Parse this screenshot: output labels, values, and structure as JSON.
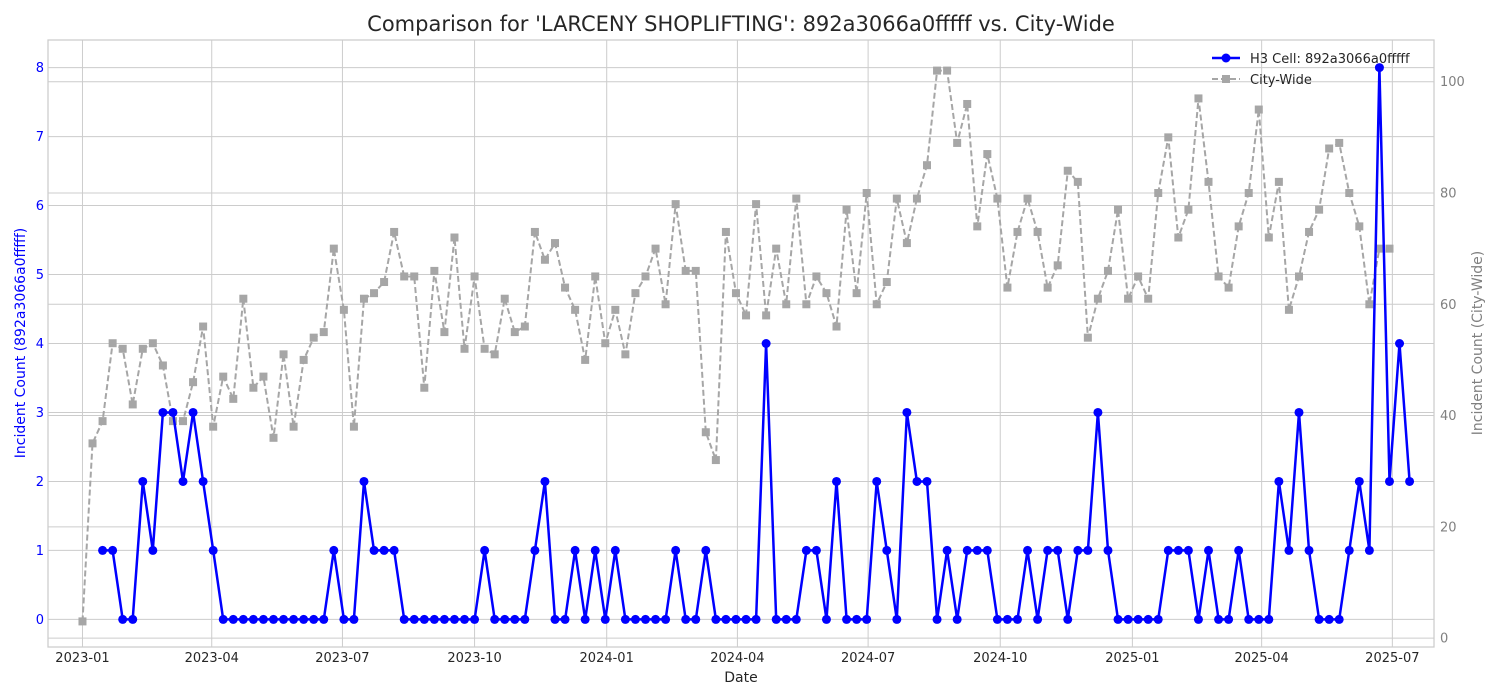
{
  "chart_data": {
    "type": "line",
    "title": "Comparison for 'LARCENY SHOPLIFTING': 892a3066a0fffff vs. City-Wide",
    "xlabel": "Date",
    "ylabel_left": "Incident Count (892a3066a0fffff)",
    "ylabel_right": "Incident Count (City-Wide)",
    "x_start": "2023-01-01",
    "x_step_days": 7,
    "x_ticks": [
      "2023-01",
      "2023-04",
      "2023-07",
      "2023-10",
      "2024-01",
      "2024-04",
      "2024-07",
      "2024-10",
      "2025-01",
      "2025-04",
      "2025-07"
    ],
    "x_range": [
      "2022-12-08",
      "2025-07-30"
    ],
    "y_left_ticks": [
      0,
      1,
      2,
      3,
      4,
      5,
      6,
      7,
      8
    ],
    "y_left_range": [
      -0.4,
      8.4
    ],
    "y_right_ticks": [
      0,
      20,
      40,
      60,
      80,
      100
    ],
    "y_right_range": [
      -1.6,
      107.5
    ],
    "grid": true,
    "legend_position": "upper right",
    "colors": {
      "cell": "#0000ff",
      "city": "#a6a6a6",
      "left_axis": "#0000ff",
      "right_axis": "#808080"
    },
    "series": [
      {
        "name": "H3 Cell: 892a3066a0fffff",
        "axis": "left",
        "marker": "circle",
        "start_index": 2,
        "values": [
          1,
          1,
          0,
          0,
          2,
          1,
          3,
          3,
          2,
          3,
          2,
          1,
          0,
          0,
          0,
          0,
          0,
          0,
          0,
          0,
          0,
          0,
          0,
          1,
          0,
          0,
          2,
          1,
          1,
          1,
          0,
          0,
          0,
          0,
          0,
          0,
          0,
          0,
          1,
          0,
          0,
          0,
          0,
          1,
          2,
          0,
          0,
          1,
          0,
          1,
          0,
          1,
          0,
          0,
          0,
          0,
          0,
          1,
          0,
          0,
          1,
          0,
          0,
          0,
          0,
          0,
          4,
          0,
          0,
          0,
          1,
          1,
          0,
          2,
          0,
          0,
          0,
          2,
          1,
          0,
          3,
          2,
          2,
          0,
          1,
          0,
          1,
          1,
          1,
          0,
          0,
          0,
          1,
          0,
          1,
          1,
          0,
          1,
          1,
          3,
          1,
          0,
          0,
          0,
          0,
          0,
          1,
          1,
          1,
          0,
          1,
          0,
          0,
          1,
          0,
          0,
          0,
          2,
          1,
          3,
          1,
          0,
          0,
          0,
          1,
          2,
          1,
          8,
          2,
          4,
          2
        ]
      },
      {
        "name": "City-Wide",
        "axis": "right",
        "marker": "square",
        "start_index": 0,
        "values": [
          3,
          35,
          39,
          53,
          52,
          42,
          52,
          53,
          49,
          39,
          39,
          46,
          56,
          38,
          47,
          43,
          61,
          45,
          47,
          36,
          51,
          38,
          50,
          54,
          55,
          70,
          59,
          38,
          61,
          62,
          64,
          73,
          65,
          65,
          45,
          66,
          55,
          72,
          52,
          65,
          52,
          51,
          61,
          55,
          56,
          73,
          68,
          71,
          63,
          59,
          50,
          65,
          53,
          59,
          51,
          62,
          65,
          70,
          60,
          78,
          66,
          66,
          37,
          32,
          73,
          62,
          58,
          78,
          58,
          70,
          60,
          79,
          60,
          65,
          62,
          56,
          77,
          62,
          80,
          60,
          64,
          79,
          71,
          79,
          85,
          102,
          102,
          89,
          96,
          74,
          87,
          79,
          63,
          73,
          79,
          73,
          63,
          67,
          84,
          82,
          54,
          61,
          66,
          77,
          61,
          65,
          61,
          80,
          90,
          72,
          77,
          97,
          82,
          65,
          63,
          74,
          80,
          95,
          72,
          82,
          59,
          65,
          73,
          77,
          88,
          89,
          80,
          74,
          60,
          70,
          70
        ]
      }
    ]
  }
}
